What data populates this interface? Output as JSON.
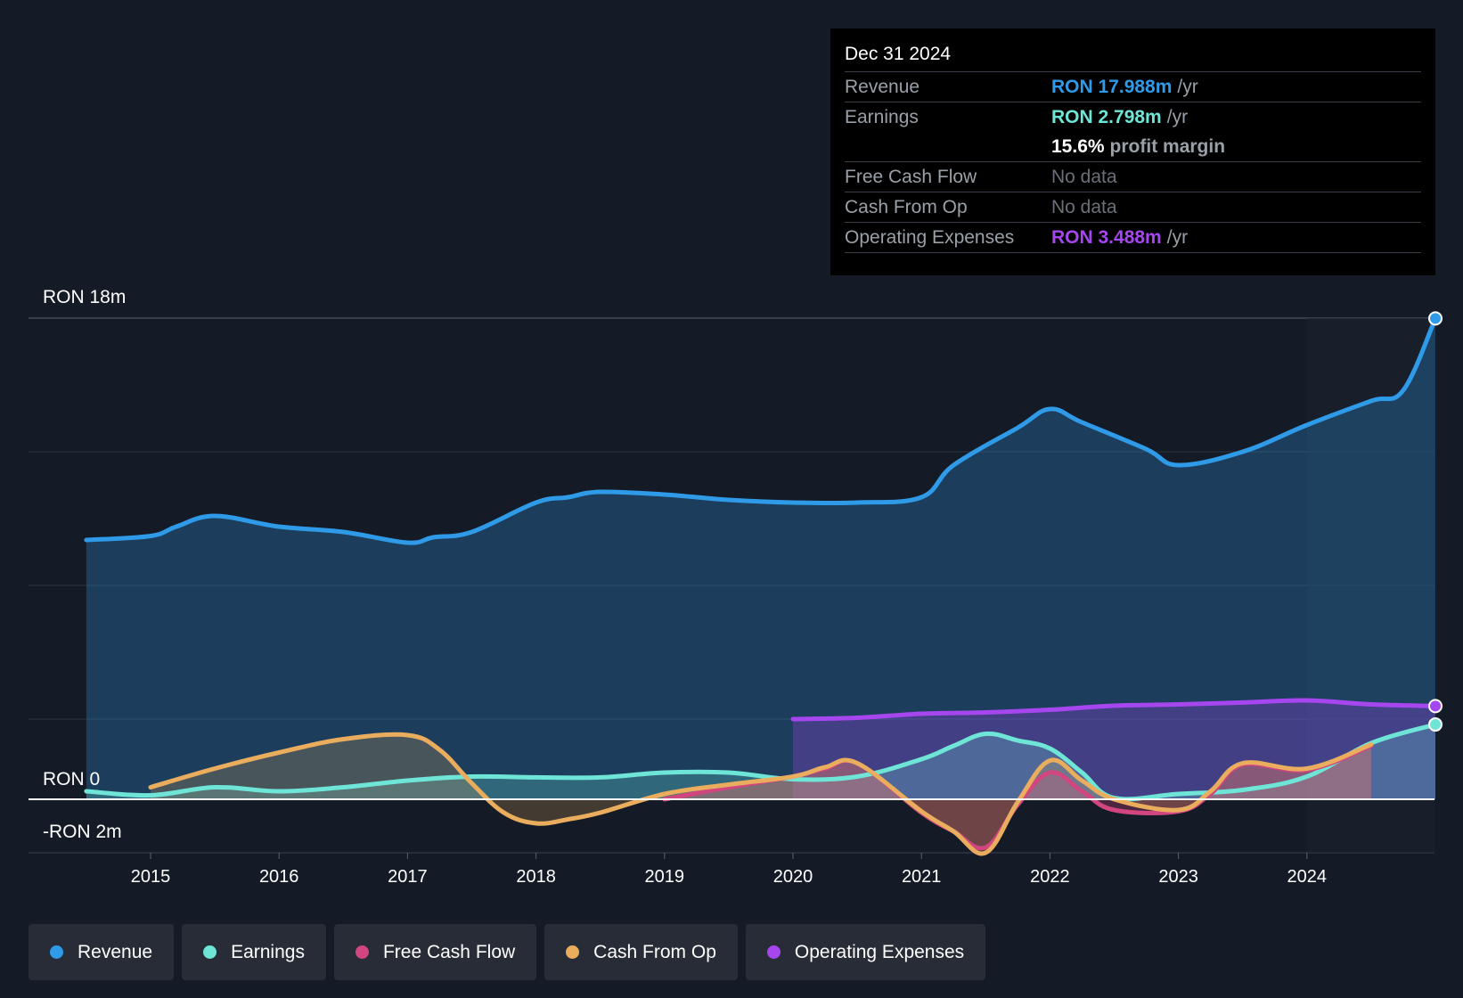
{
  "tooltip": {
    "date": "Dec 31 2024",
    "rows": [
      {
        "key": "Revenue",
        "value": "RON 17.988m",
        "unit": "/yr"
      },
      {
        "key": "Earnings",
        "value": "RON 2.798m",
        "unit": "/yr"
      },
      {
        "margin_value": "15.6%",
        "margin_text": "profit margin"
      },
      {
        "key": "Free Cash Flow",
        "value": "No data"
      },
      {
        "key": "Cash From Op",
        "value": "No data"
      },
      {
        "key": "Operating Expenses",
        "value": "RON 3.488m",
        "unit": "/yr"
      }
    ]
  },
  "legend": [
    {
      "label": "Revenue",
      "color": "#2f9be8"
    },
    {
      "label": "Earnings",
      "color": "#6ee5d6"
    },
    {
      "label": "Free Cash Flow",
      "color": "#d2467f"
    },
    {
      "label": "Cash From Op",
      "color": "#eaad5d"
    },
    {
      "label": "Operating Expenses",
      "color": "#a646ef"
    }
  ],
  "chart_data": {
    "type": "area",
    "title": "",
    "xlabel": "",
    "ylabel": "",
    "y_top_label": "RON 18m",
    "y_zero_label": "RON 0",
    "y_bottom_label": "-RON 2m",
    "ylim": [
      -2,
      18
    ],
    "xlim": [
      2014.05,
      2025.0
    ],
    "x_ticks": [
      2015,
      2016,
      2017,
      2018,
      2019,
      2020,
      2021,
      2022,
      2023,
      2024
    ],
    "series": [
      {
        "name": "Revenue",
        "color": "#2f9be8",
        "fill": true,
        "x": [
          2014.5,
          2015.0,
          2015.2,
          2015.5,
          2016.0,
          2016.5,
          2017.0,
          2017.2,
          2017.5,
          2018.0,
          2018.25,
          2018.5,
          2019.0,
          2019.5,
          2020.0,
          2020.5,
          2021.0,
          2021.25,
          2021.75,
          2022.0,
          2022.25,
          2022.75,
          2023.0,
          2023.5,
          2024.0,
          2024.5,
          2024.75,
          2025.0
        ],
        "y": [
          9.7,
          9.85,
          10.2,
          10.6,
          10.2,
          10.0,
          9.6,
          9.8,
          10.0,
          11.1,
          11.3,
          11.5,
          11.4,
          11.2,
          11.1,
          11.1,
          11.3,
          12.5,
          13.9,
          14.6,
          14.1,
          13.1,
          12.5,
          13.0,
          14.0,
          14.9,
          15.3,
          17.988
        ]
      },
      {
        "name": "Operating Expenses",
        "color": "#a646ef",
        "fill": true,
        "x": [
          2020.0,
          2020.5,
          2021.0,
          2021.5,
          2022.0,
          2022.5,
          2023.0,
          2023.5,
          2024.0,
          2024.5,
          2025.0
        ],
        "y": [
          3.0,
          3.05,
          3.2,
          3.25,
          3.35,
          3.5,
          3.55,
          3.62,
          3.7,
          3.55,
          3.488
        ]
      },
      {
        "name": "Earnings",
        "color": "#6ee5d6",
        "fill": true,
        "x": [
          2014.5,
          2015.0,
          2015.5,
          2016.0,
          2016.5,
          2017.0,
          2017.5,
          2018.0,
          2018.5,
          2019.0,
          2019.5,
          2020.0,
          2020.5,
          2021.0,
          2021.25,
          2021.5,
          2021.75,
          2022.0,
          2022.25,
          2022.5,
          2023.0,
          2023.5,
          2024.0,
          2024.5,
          2025.0
        ],
        "y": [
          0.3,
          0.15,
          0.45,
          0.3,
          0.45,
          0.7,
          0.85,
          0.82,
          0.82,
          1.0,
          1.0,
          0.75,
          0.85,
          1.5,
          2.0,
          2.45,
          2.2,
          1.9,
          1.0,
          0.05,
          0.2,
          0.35,
          0.85,
          2.1,
          2.798
        ]
      },
      {
        "name": "Free Cash Flow",
        "color": "#d2467f",
        "fill": true,
        "x": [
          2019.0,
          2019.5,
          2020.0,
          2020.25,
          2020.5,
          2021.0,
          2021.25,
          2021.5,
          2021.75,
          2022.0,
          2022.25,
          2022.5,
          2023.0,
          2023.25,
          2023.5,
          2024.0,
          2024.5
        ],
        "y": [
          0.0,
          0.45,
          0.85,
          1.15,
          1.35,
          -0.5,
          -1.2,
          -1.8,
          -0.2,
          1.0,
          0.3,
          -0.4,
          -0.45,
          0.2,
          1.3,
          1.1,
          2.0
        ]
      },
      {
        "name": "Cash From Op",
        "color": "#eaad5d",
        "fill": true,
        "x": [
          2015.0,
          2015.5,
          2016.0,
          2016.5,
          2017.0,
          2017.25,
          2017.5,
          2017.75,
          2018.0,
          2018.25,
          2018.5,
          2019.0,
          2019.5,
          2020.0,
          2020.25,
          2020.5,
          2021.0,
          2021.25,
          2021.5,
          2021.75,
          2022.0,
          2022.25,
          2022.5,
          2023.0,
          2023.25,
          2023.5,
          2024.0,
          2024.5
        ],
        "y": [
          0.45,
          1.15,
          1.75,
          2.25,
          2.4,
          1.85,
          0.6,
          -0.5,
          -0.9,
          -0.75,
          -0.5,
          0.2,
          0.55,
          0.85,
          1.2,
          1.35,
          -0.45,
          -1.2,
          -2.0,
          -0.1,
          1.45,
          0.7,
          0.0,
          -0.4,
          0.3,
          1.35,
          1.15,
          2.05
        ]
      }
    ],
    "endpoint_markers": [
      "Revenue",
      "Operating Expenses",
      "Earnings"
    ],
    "highlight_from_x": 2024.0
  }
}
